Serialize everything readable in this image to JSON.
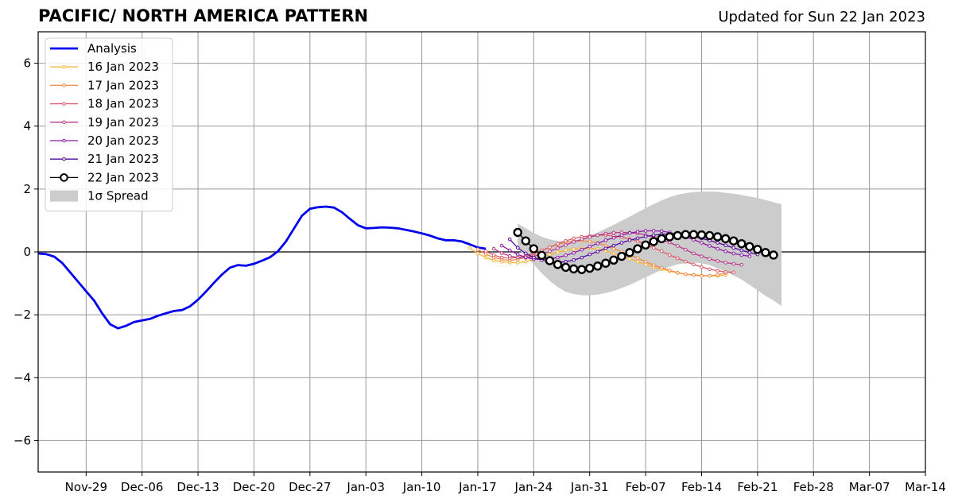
{
  "header": {
    "title": "PACIFIC/ NORTH AMERICA PATTERN",
    "updated": "Updated for Sun 22 Jan 2023"
  },
  "chart_data": {
    "type": "line",
    "title": "PACIFIC/ NORTH AMERICA PATTERN",
    "subtitle": "Updated for Sun 22 Jan 2023",
    "xlabel": "",
    "ylabel": "",
    "x_type": "date",
    "xlim": [
      "2022-11-23",
      "2023-03-14"
    ],
    "ylim": [
      -7,
      7
    ],
    "yticks": [
      -6,
      -4,
      -2,
      0,
      2,
      4,
      6
    ],
    "xticks": [
      {
        "date": "2022-11-29",
        "label": "Nov-29"
      },
      {
        "date": "2022-12-06",
        "label": "Dec-06"
      },
      {
        "date": "2022-12-13",
        "label": "Dec-13"
      },
      {
        "date": "2022-12-20",
        "label": "Dec-20"
      },
      {
        "date": "2022-12-27",
        "label": "Dec-27"
      },
      {
        "date": "2023-01-03",
        "label": "Jan-03"
      },
      {
        "date": "2023-01-10",
        "label": "Jan-10"
      },
      {
        "date": "2023-01-17",
        "label": "Jan-17"
      },
      {
        "date": "2023-01-24",
        "label": "Jan-24"
      },
      {
        "date": "2023-01-31",
        "label": "Jan-31"
      },
      {
        "date": "2023-02-07",
        "label": "Feb-07"
      },
      {
        "date": "2023-02-14",
        "label": "Feb-14"
      },
      {
        "date": "2023-02-21",
        "label": "Feb-21"
      },
      {
        "date": "2023-02-28",
        "label": "Feb-28"
      },
      {
        "date": "2023-03-07",
        "label": "Mar-07"
      },
      {
        "date": "2023-03-14",
        "label": "Mar-14"
      }
    ],
    "grid": true,
    "legend_position": "top-left",
    "legend": [
      {
        "label": "Analysis",
        "color": "#0000ee",
        "kind": "line"
      },
      {
        "label": "16 Jan 2023",
        "color": "#f9b43a",
        "kind": "marker"
      },
      {
        "label": "17 Jan 2023",
        "color": "#ef8a47",
        "kind": "marker"
      },
      {
        "label": "18 Jan 2023",
        "color": "#dc5b6a",
        "kind": "marker"
      },
      {
        "label": "19 Jan 2023",
        "color": "#b63a87",
        "kind": "marker"
      },
      {
        "label": "20 Jan 2023",
        "color": "#8a1aa3",
        "kind": "marker"
      },
      {
        "label": "21 Jan 2023",
        "color": "#54079c",
        "kind": "marker"
      },
      {
        "label": "22 Jan 2023",
        "color": "#000000",
        "kind": "circle"
      },
      {
        "label": "1σ Spread",
        "color": "#cccccc",
        "kind": "patch"
      }
    ],
    "series": [
      {
        "name": "Analysis",
        "color": "#0000ee",
        "style": "analysis",
        "start": "2022-11-23",
        "values": [
          -0.05,
          -0.07,
          -0.15,
          -0.35,
          -0.65,
          -0.95,
          -1.25,
          -1.55,
          -1.95,
          -2.3,
          -2.43,
          -2.35,
          -2.23,
          -2.18,
          -2.13,
          -2.03,
          -1.95,
          -1.88,
          -1.85,
          -1.73,
          -1.52,
          -1.26,
          -0.98,
          -0.72,
          -0.5,
          -0.42,
          -0.44,
          -0.38,
          -0.28,
          -0.17,
          0.02,
          0.33,
          0.74,
          1.15,
          1.37,
          1.42,
          1.44,
          1.41,
          1.26,
          1.05,
          0.85,
          0.75,
          0.76,
          0.78,
          0.77,
          0.75,
          0.7,
          0.65,
          0.59,
          0.52,
          0.43,
          0.37,
          0.37,
          0.33,
          0.24,
          0.14,
          0.1
        ]
      },
      {
        "name": "16 Jan 2023",
        "color": "#f9b43a",
        "style": "forecast",
        "start": "2023-01-16",
        "values": [
          0.12,
          -0.05,
          -0.18,
          -0.27,
          -0.31,
          -0.34,
          -0.34,
          -0.31,
          -0.24,
          -0.16,
          -0.08,
          -0.01,
          0.05,
          0.09,
          0.11,
          0.12,
          0.09,
          0.03,
          -0.05,
          -0.13,
          -0.22,
          -0.31,
          -0.4,
          -0.48,
          -0.55,
          -0.61,
          -0.67,
          -0.71,
          -0.73,
          -0.75,
          -0.76,
          -0.76,
          -0.74
        ]
      },
      {
        "name": "17 Jan 2023",
        "color": "#ef8a47",
        "style": "forecast",
        "start": "2023-01-17",
        "values": [
          0.08,
          -0.07,
          -0.18,
          -0.24,
          -0.27,
          -0.24,
          -0.17,
          -0.07,
          0.04,
          0.15,
          0.24,
          0.31,
          0.35,
          0.35,
          0.33,
          0.28,
          0.2,
          0.1,
          0.01,
          -0.09,
          -0.2,
          -0.31,
          -0.42,
          -0.51,
          -0.59,
          -0.66,
          -0.71,
          -0.74,
          -0.76,
          -0.76,
          -0.73,
          -0.67
        ]
      },
      {
        "name": "18 Jan 2023",
        "color": "#dc5b6a",
        "style": "forecast",
        "start": "2023-01-18",
        "values": [
          0.02,
          -0.1,
          -0.18,
          -0.2,
          -0.18,
          -0.12,
          -0.04,
          0.05,
          0.15,
          0.26,
          0.35,
          0.43,
          0.48,
          0.51,
          0.53,
          0.53,
          0.51,
          0.47,
          0.41,
          0.34,
          0.24,
          0.13,
          0.02,
          -0.1,
          -0.2,
          -0.31,
          -0.4,
          -0.48,
          -0.55,
          -0.6,
          -0.64,
          -0.65
        ]
      },
      {
        "name": "19 Jan 2023",
        "color": "#b63a87",
        "style": "forecast",
        "start": "2023-01-19",
        "values": [
          0.1,
          -0.04,
          -0.13,
          -0.18,
          -0.19,
          -0.14,
          -0.07,
          0.02,
          0.12,
          0.22,
          0.32,
          0.4,
          0.47,
          0.53,
          0.58,
          0.61,
          0.62,
          0.61,
          0.59,
          0.54,
          0.47,
          0.39,
          0.3,
          0.19,
          0.07,
          -0.05,
          -0.14,
          -0.22,
          -0.29,
          -0.34,
          -0.38,
          -0.41
        ]
      },
      {
        "name": "20 Jan 2023",
        "color": "#8a1aa3",
        "style": "forecast",
        "start": "2023-01-20",
        "values": [
          0.2,
          0.05,
          -0.08,
          -0.17,
          -0.23,
          -0.24,
          -0.22,
          -0.18,
          -0.11,
          -0.03,
          0.07,
          0.17,
          0.27,
          0.37,
          0.45,
          0.53,
          0.6,
          0.64,
          0.67,
          0.67,
          0.66,
          0.62,
          0.55,
          0.48,
          0.39,
          0.29,
          0.19,
          0.1,
          0.02,
          -0.05,
          -0.1,
          -0.14
        ]
      },
      {
        "name": "21 Jan 2023",
        "color": "#54079c",
        "style": "forecast",
        "start": "2023-01-21",
        "values": [
          0.4,
          0.13,
          -0.05,
          -0.18,
          -0.26,
          -0.31,
          -0.33,
          -0.31,
          -0.26,
          -0.18,
          -0.08,
          0.01,
          0.11,
          0.2,
          0.29,
          0.37,
          0.43,
          0.49,
          0.53,
          0.56,
          0.57,
          0.56,
          0.53,
          0.49,
          0.43,
          0.36,
          0.29,
          0.21,
          0.13,
          0.05,
          -0.02,
          -0.08
        ]
      },
      {
        "name": "22 Jan 2023",
        "color": "#000000",
        "style": "current",
        "start": "2023-01-22",
        "values": [
          0.62,
          0.35,
          0.1,
          -0.11,
          -0.28,
          -0.4,
          -0.49,
          -0.54,
          -0.56,
          -0.52,
          -0.45,
          -0.36,
          -0.26,
          -0.14,
          -0.02,
          0.1,
          0.22,
          0.33,
          0.42,
          0.48,
          0.52,
          0.55,
          0.55,
          0.54,
          0.52,
          0.48,
          0.42,
          0.35,
          0.26,
          0.17,
          0.08,
          -0.02,
          -0.1
        ]
      }
    ],
    "spread": {
      "name": "1σ Spread",
      "color": "#cccccc",
      "start": "2023-01-22",
      "upper": [
        0.9,
        0.75,
        0.6,
        0.48,
        0.4,
        0.35,
        0.33,
        0.36,
        0.42,
        0.52,
        0.62,
        0.74,
        0.86,
        0.99,
        1.12,
        1.26,
        1.39,
        1.52,
        1.64,
        1.74,
        1.82,
        1.87,
        1.9,
        1.92,
        1.92,
        1.91,
        1.88,
        1.85,
        1.81,
        1.76,
        1.71,
        1.65,
        1.58,
        1.52
      ],
      "lower": [
        0.1,
        -0.15,
        -0.4,
        -0.68,
        -0.92,
        -1.12,
        -1.27,
        -1.34,
        -1.38,
        -1.38,
        -1.36,
        -1.31,
        -1.24,
        -1.15,
        -1.05,
        -0.93,
        -0.81,
        -0.69,
        -0.57,
        -0.47,
        -0.4,
        -0.36,
        -0.34,
        -0.36,
        -0.42,
        -0.52,
        -0.62,
        -0.75,
        -0.88,
        -1.05,
        -1.22,
        -1.4,
        -1.55,
        -1.72
      ]
    }
  }
}
